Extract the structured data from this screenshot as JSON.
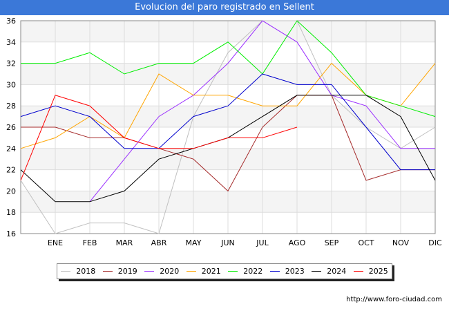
{
  "header": {
    "title": "Evolucion del paro registrado en Sellent"
  },
  "footer": {
    "source": "http://www.foro-ciudad.com"
  },
  "chart_data": {
    "type": "line",
    "title": "Evolucion del paro registrado en Sellent",
    "categories": [
      "",
      "ENE",
      "FEB",
      "MAR",
      "ABR",
      "MAY",
      "JUN",
      "JUL",
      "AGO",
      "SEP",
      "OCT",
      "NOV",
      "DIC"
    ],
    "ylim": [
      16,
      36
    ],
    "yticks": [
      16,
      18,
      20,
      22,
      24,
      26,
      28,
      30,
      32,
      34,
      36
    ],
    "grid": true,
    "legend_position": "bottom",
    "series": [
      {
        "name": "2018",
        "color": "#c0c0c0",
        "values": [
          21,
          16,
          17,
          17,
          16,
          27,
          33,
          36,
          36,
          29,
          26,
          24,
          26
        ]
      },
      {
        "name": "2019",
        "color": "#a52a2a",
        "values": [
          26,
          26,
          25,
          25,
          24,
          23,
          20,
          26,
          29,
          29,
          21,
          22,
          22
        ]
      },
      {
        "name": "2020",
        "color": "#9b30ff",
        "values": [
          null,
          null,
          19,
          23,
          27,
          29,
          32,
          36,
          34,
          29,
          28,
          24,
          24
        ]
      },
      {
        "name": "2021",
        "color": "#ffa500",
        "values": [
          24,
          25,
          27,
          25,
          31,
          29,
          29,
          28,
          28,
          32,
          29,
          28,
          32
        ]
      },
      {
        "name": "2022",
        "color": "#00ee00",
        "values": [
          32,
          32,
          33,
          31,
          32,
          32,
          34,
          31,
          36,
          33,
          29,
          28,
          27
        ]
      },
      {
        "name": "2023",
        "color": "#0000cd",
        "values": [
          27,
          28,
          27,
          24,
          24,
          27,
          28,
          31,
          30,
          30,
          26,
          22,
          22
        ]
      },
      {
        "name": "2024",
        "color": "#000000",
        "values": [
          22,
          19,
          19,
          20,
          23,
          24,
          25,
          27,
          29,
          29,
          29,
          27,
          21
        ]
      },
      {
        "name": "2025",
        "color": "#ff0000",
        "values": [
          21,
          29,
          28,
          25,
          24,
          24,
          25,
          25,
          26,
          null,
          null,
          null,
          null
        ]
      }
    ]
  }
}
